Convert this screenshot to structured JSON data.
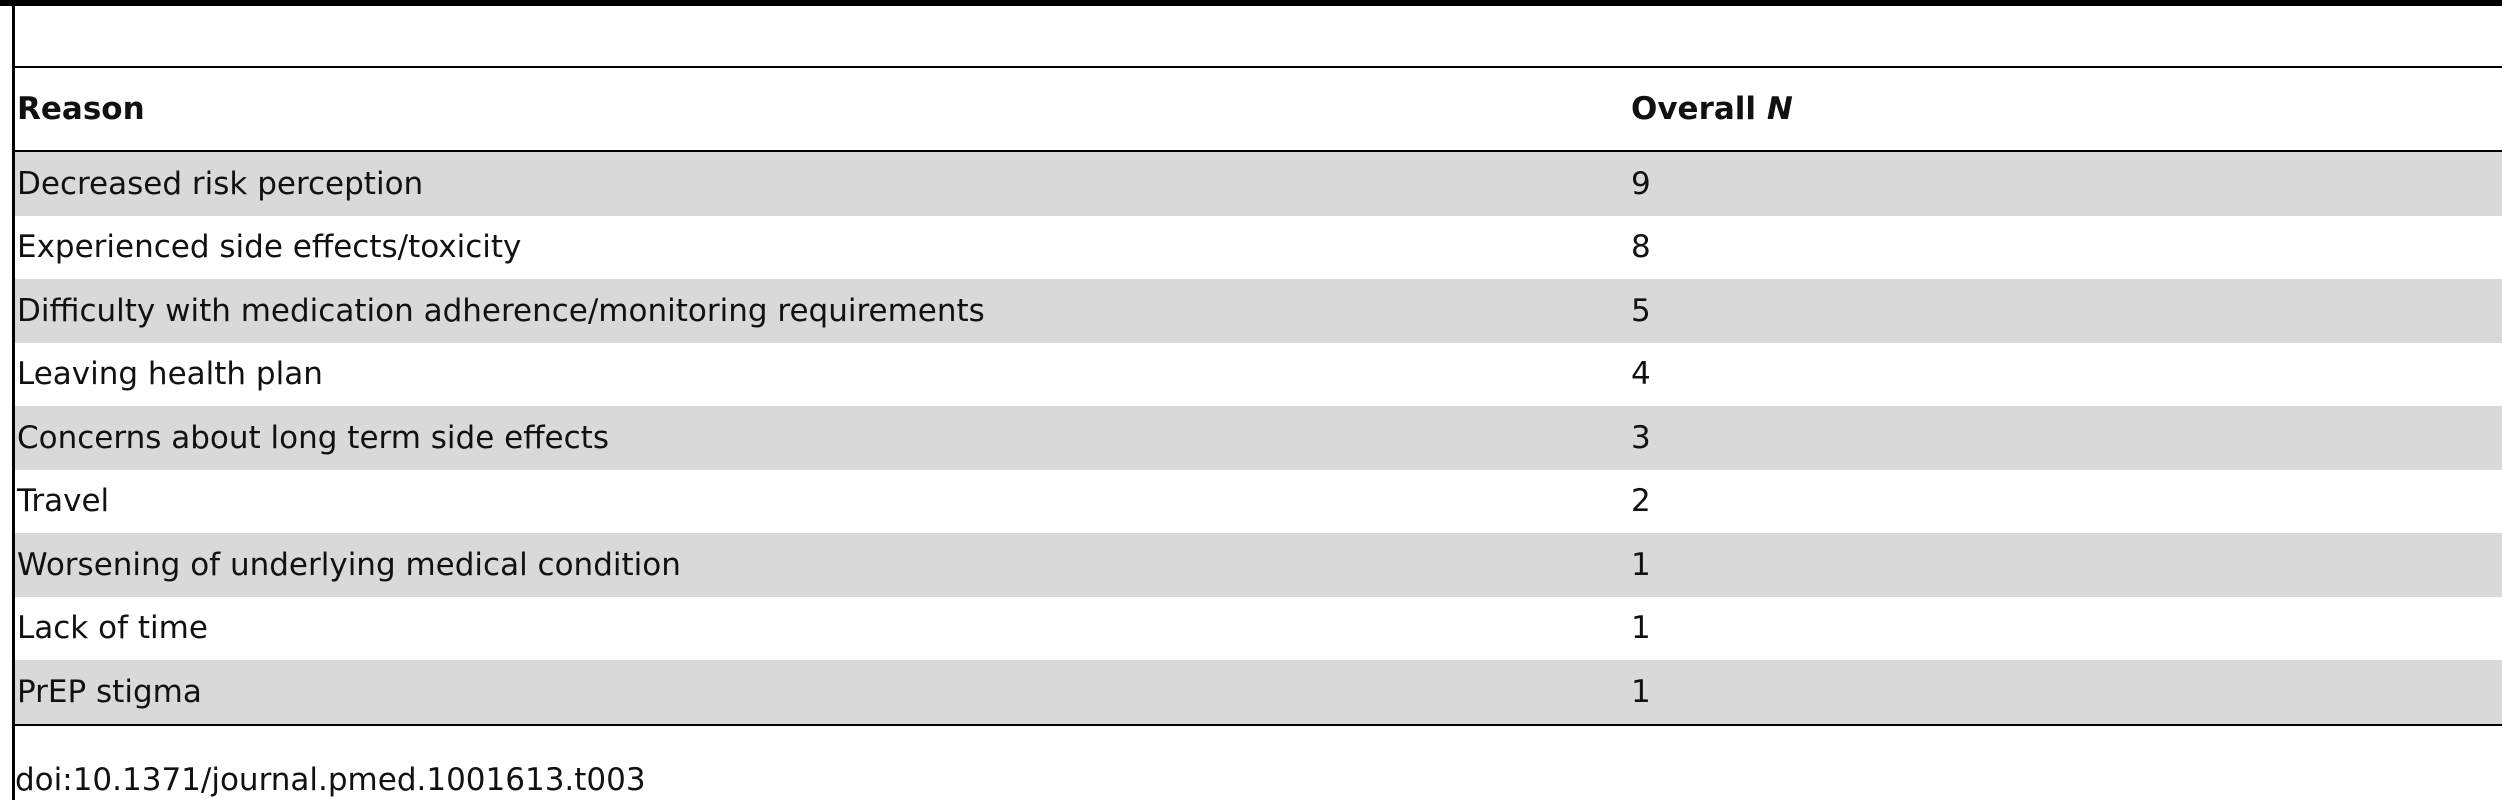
{
  "table": {
    "header": {
      "reason": "Reason",
      "overall": "Overall",
      "n": "N"
    },
    "rows": [
      [
        "Decreased risk perception",
        9
      ],
      [
        "Experienced side effects/toxicity",
        8
      ],
      [
        "Difficulty with medication adherence/monitoring requirements",
        5
      ],
      [
        "Leaving health plan",
        4
      ],
      [
        "Concerns about long term side effects",
        3
      ],
      [
        "Travel",
        2
      ],
      [
        "Worsening of underlying medical condition",
        1
      ],
      [
        "Lack of time",
        1
      ],
      [
        "PrEP stigma",
        1
      ]
    ]
  },
  "footer": "doi:10.1371/journal.pmed.1001613.t003"
}
